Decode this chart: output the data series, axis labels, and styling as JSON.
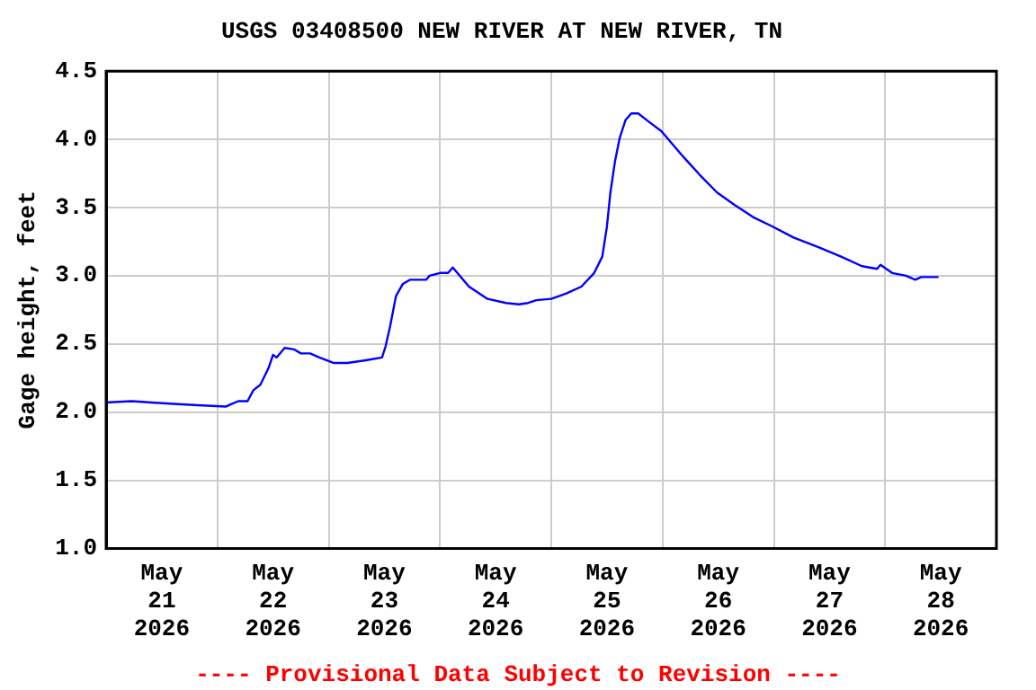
{
  "chart_data": {
    "type": "line",
    "title": "USGS 03408500 NEW RIVER AT NEW RIVER, TN",
    "ylabel": "Gage height, feet",
    "annotations": [
      "---- Provisional Data Subject to Revision ----"
    ],
    "x": [
      "2026-05-21T00:00",
      "2026-05-21T05:30",
      "2026-05-21T09:45",
      "2026-05-21T14:30",
      "2026-05-21T19:45",
      "2026-05-22T01:45",
      "2026-05-22T04:30",
      "2026-05-22T06:30",
      "2026-05-22T07:45",
      "2026-05-22T09:15",
      "2026-05-22T11:00",
      "2026-05-22T12:00",
      "2026-05-22T12:45",
      "2026-05-22T14:30",
      "2026-05-22T16:30",
      "2026-05-22T18:00",
      "2026-05-22T20:00",
      "2026-05-22T22:00",
      "2026-05-23T01:00",
      "2026-05-23T04:00",
      "2026-05-23T08:00",
      "2026-05-23T11:30",
      "2026-05-23T12:15",
      "2026-05-23T13:15",
      "2026-05-23T14:30",
      "2026-05-23T16:00",
      "2026-05-23T17:30",
      "2026-05-23T21:00",
      "2026-05-23T21:45",
      "2026-05-24T00:00",
      "2026-05-24T01:45",
      "2026-05-24T02:45",
      "2026-05-24T03:45",
      "2026-05-24T06:15",
      "2026-05-24T08:00",
      "2026-05-24T10:15",
      "2026-05-24T14:15",
      "2026-05-24T17:00",
      "2026-05-24T19:00",
      "2026-05-24T20:45",
      "2026-05-25T00:00",
      "2026-05-25T03:15",
      "2026-05-25T06:30",
      "2026-05-25T09:15",
      "2026-05-25T11:00",
      "2026-05-25T12:00",
      "2026-05-25T12:45",
      "2026-05-25T13:45",
      "2026-05-25T14:45",
      "2026-05-25T16:00",
      "2026-05-25T17:15",
      "2026-05-25T18:45",
      "2026-05-25T21:00",
      "2026-05-25T23:45",
      "2026-05-26T04:00",
      "2026-05-26T08:00",
      "2026-05-26T11:45",
      "2026-05-26T15:30",
      "2026-05-26T19:30",
      "2026-05-26T23:45",
      "2026-05-27T04:15",
      "2026-05-27T09:30",
      "2026-05-27T14:30",
      "2026-05-27T19:00",
      "2026-05-27T22:15",
      "2026-05-27T23:00",
      "2026-05-28T01:30",
      "2026-05-28T04:30",
      "2026-05-28T06:30",
      "2026-05-28T07:45",
      "2026-05-28T11:30"
    ],
    "series": [
      {
        "color": "#0000ff",
        "values": [
          2.07,
          2.08,
          2.07,
          2.06,
          2.05,
          2.04,
          2.08,
          2.08,
          2.16,
          2.2,
          2.32,
          2.42,
          2.4,
          2.47,
          2.46,
          2.43,
          2.43,
          2.4,
          2.36,
          2.36,
          2.38,
          2.4,
          2.48,
          2.63,
          2.85,
          2.94,
          2.97,
          2.97,
          3.0,
          3.02,
          3.02,
          3.06,
          3.02,
          2.92,
          2.88,
          2.83,
          2.8,
          2.79,
          2.8,
          2.82,
          2.83,
          2.87,
          2.92,
          3.02,
          3.14,
          3.36,
          3.61,
          3.84,
          4.01,
          4.14,
          4.19,
          4.19,
          4.13,
          4.06,
          3.89,
          3.74,
          3.61,
          3.52,
          3.43,
          3.36,
          3.28,
          3.21,
          3.14,
          3.07,
          3.05,
          3.08,
          3.02,
          3.0,
          2.97,
          2.99,
          2.99
        ]
      }
    ],
    "xlim": [
      "2026-05-21T00:00",
      "2026-05-29T00:00"
    ],
    "xticks": [
      {
        "value": "2026-05-21T00:00",
        "label": null
      },
      {
        "value": "2026-05-21T12:00",
        "label": "May 21 2026"
      },
      {
        "value": "2026-05-22T00:00",
        "label": null
      },
      {
        "value": "2026-05-22T12:00",
        "label": "May 22 2026"
      },
      {
        "value": "2026-05-23T00:00",
        "label": null
      },
      {
        "value": "2026-05-23T12:00",
        "label": "May 23 2026"
      },
      {
        "value": "2026-05-24T00:00",
        "label": null
      },
      {
        "value": "2026-05-24T12:00",
        "label": "May 24 2026"
      },
      {
        "value": "2026-05-25T00:00",
        "label": null
      },
      {
        "value": "2026-05-25T12:00",
        "label": "May 25 2026"
      },
      {
        "value": "2026-05-26T00:00",
        "label": null
      },
      {
        "value": "2026-05-26T12:00",
        "label": "May 26 2026"
      },
      {
        "value": "2026-05-27T00:00",
        "label": null
      },
      {
        "value": "2026-05-27T12:00",
        "label": "May 27 2026"
      },
      {
        "value": "2026-05-28T00:00",
        "label": null
      },
      {
        "value": "2026-05-28T12:00",
        "label": "May 28 2026"
      },
      {
        "value": "2026-05-29T00:00",
        "label": null
      }
    ],
    "ylim": [
      1.0,
      4.5
    ],
    "yticks": [
      {
        "value": 1.0,
        "label": "1.0"
      },
      {
        "value": 1.5,
        "label": "1.5"
      },
      {
        "value": 2.0,
        "label": "2.0"
      },
      {
        "value": 2.5,
        "label": "2.5"
      },
      {
        "value": 3.0,
        "label": "3.0"
      },
      {
        "value": 3.5,
        "label": "3.5"
      },
      {
        "value": 4.0,
        "label": "4.0"
      },
      {
        "value": 4.5,
        "label": "4.5"
      }
    ],
    "grid": true,
    "legend": false
  }
}
